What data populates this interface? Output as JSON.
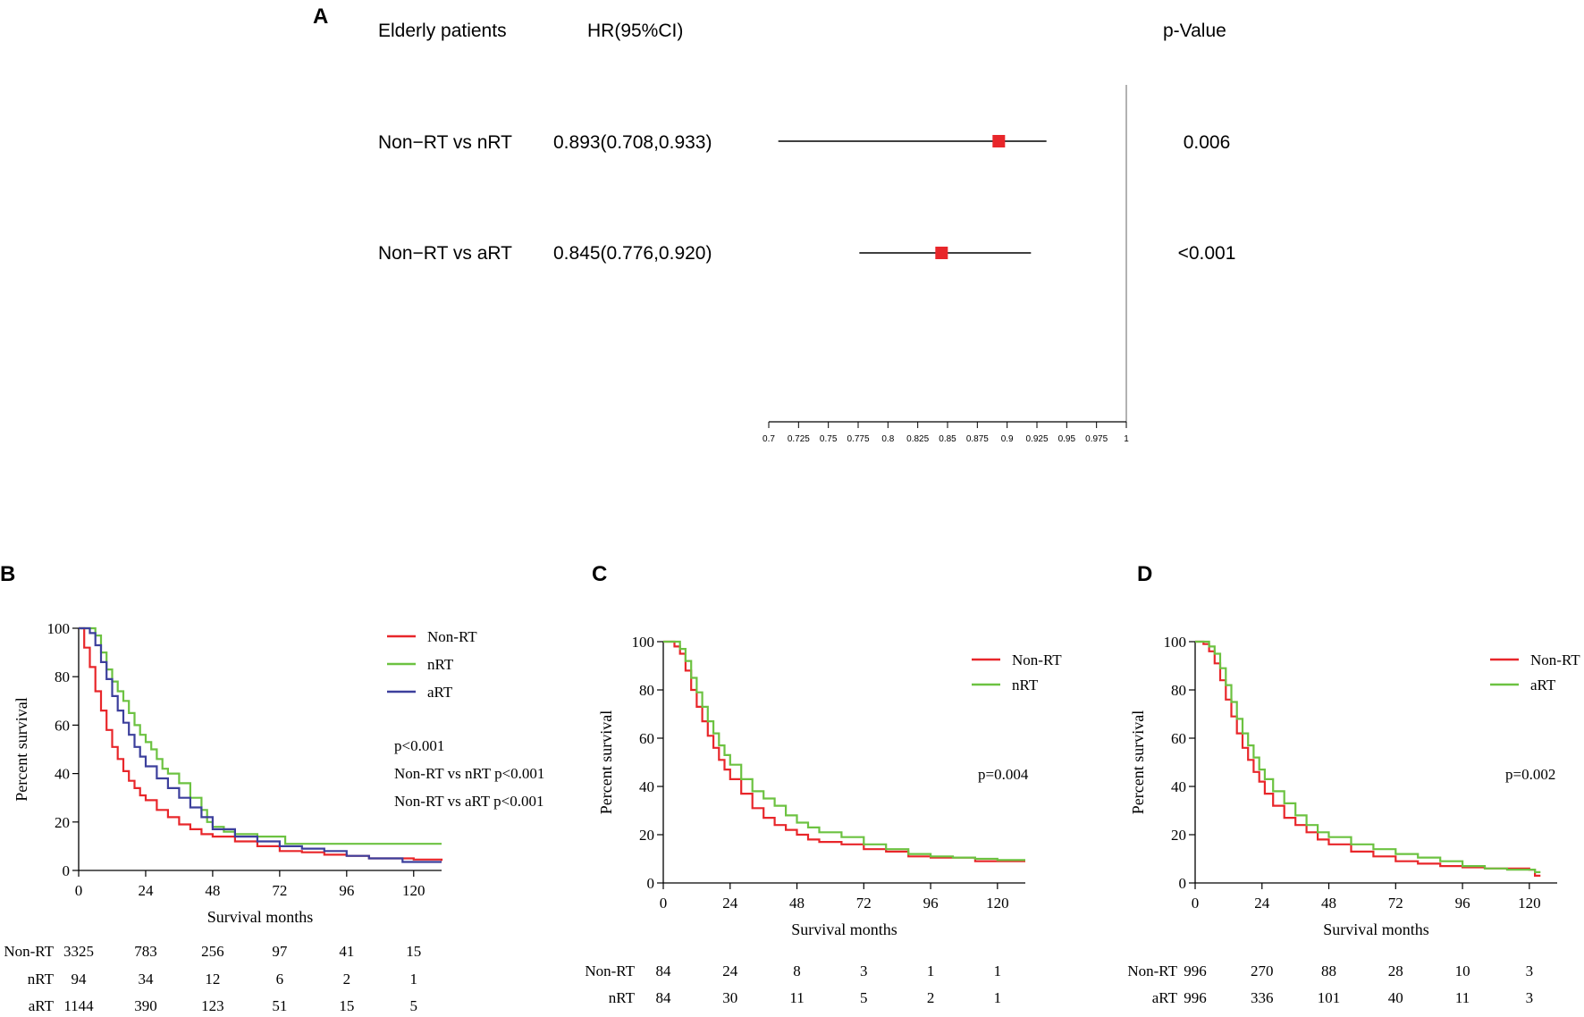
{
  "colors": {
    "red": "#e8262a",
    "green": "#6cc241",
    "blue": "#3c3f9c",
    "black": "#000000",
    "gray": "#999999"
  },
  "chart_data": [
    {
      "panel": "A",
      "type": "forest",
      "header": {
        "group": "Elderly patients",
        "hr": "HR(95%CI)",
        "p": "p-Value"
      },
      "rows": [
        {
          "label": "Non−RT vs nRT",
          "hr_text": "0.893(0.708,0.933)",
          "hr": 0.893,
          "lo": 0.708,
          "hi": 0.933,
          "p": "0.006"
        },
        {
          "label": "Non−RT vs aRT",
          "hr_text": "0.845(0.776,0.920)",
          "hr": 0.845,
          "lo": 0.776,
          "hi": 0.92,
          "p": "<0.001"
        }
      ],
      "xlim": [
        0.7,
        1.0
      ],
      "ref_line": 1.0,
      "ticks": [
        "0.7",
        "0.725",
        "0.75",
        "0.775",
        "0.8",
        "0.825",
        "0.85",
        "0.875",
        "0.9",
        "0.925",
        "0.95",
        "0.975",
        "1"
      ]
    },
    {
      "panel": "B",
      "type": "line",
      "xlabel": "Survival months",
      "ylabel": "Percent survival",
      "xlim": [
        0,
        130
      ],
      "ylim": [
        0,
        100
      ],
      "xticks": [
        "0",
        "24",
        "48",
        "72",
        "96",
        "120"
      ],
      "yticks": [
        "0",
        "20",
        "40",
        "60",
        "80",
        "100"
      ],
      "legend": [
        "Non-RT",
        "nRT",
        "aRT"
      ],
      "annotations": [
        "p<0.001",
        "Non-RT vs nRT p<0.001",
        "Non-RT vs aRT p<0.001"
      ],
      "series": [
        {
          "name": "Non-RT",
          "color": "red",
          "points": [
            [
              0,
              100
            ],
            [
              2,
              92
            ],
            [
              4,
              84
            ],
            [
              6,
              74
            ],
            [
              8,
              66
            ],
            [
              10,
              58
            ],
            [
              12,
              51
            ],
            [
              14,
              46
            ],
            [
              16,
              41
            ],
            [
              18,
              37
            ],
            [
              20,
              34
            ],
            [
              22,
              31
            ],
            [
              24,
              29
            ],
            [
              28,
              25
            ],
            [
              32,
              22
            ],
            [
              36,
              19
            ],
            [
              40,
              17
            ],
            [
              44,
              15
            ],
            [
              48,
              14
            ],
            [
              56,
              12
            ],
            [
              64,
              10
            ],
            [
              72,
              8
            ],
            [
              80,
              7.5
            ],
            [
              88,
              6.5
            ],
            [
              96,
              6
            ],
            [
              104,
              5
            ],
            [
              112,
              5
            ],
            [
              120,
              4.5
            ],
            [
              130,
              4
            ]
          ]
        },
        {
          "name": "nRT",
          "color": "green",
          "points": [
            [
              0,
              100
            ],
            [
              4,
              100
            ],
            [
              6,
              97
            ],
            [
              8,
              90
            ],
            [
              10,
              83
            ],
            [
              12,
              78
            ],
            [
              14,
              74
            ],
            [
              16,
              70
            ],
            [
              18,
              65
            ],
            [
              20,
              60
            ],
            [
              22,
              56
            ],
            [
              24,
              53
            ],
            [
              26,
              50
            ],
            [
              28,
              46
            ],
            [
              30,
              42
            ],
            [
              32,
              40
            ],
            [
              36,
              36
            ],
            [
              40,
              30
            ],
            [
              44,
              25
            ],
            [
              46,
              20
            ],
            [
              48,
              18
            ],
            [
              52,
              16
            ],
            [
              56,
              15
            ],
            [
              64,
              14
            ],
            [
              72,
              14
            ],
            [
              74,
              11
            ],
            [
              130,
              11
            ]
          ]
        },
        {
          "name": "aRT",
          "color": "blue",
          "points": [
            [
              0,
              100
            ],
            [
              4,
              98
            ],
            [
              6,
              93
            ],
            [
              8,
              86
            ],
            [
              10,
              79
            ],
            [
              12,
              72
            ],
            [
              14,
              66
            ],
            [
              16,
              61
            ],
            [
              18,
              56
            ],
            [
              20,
              51
            ],
            [
              22,
              47
            ],
            [
              24,
              43
            ],
            [
              28,
              38
            ],
            [
              32,
              34
            ],
            [
              36,
              30
            ],
            [
              40,
              26
            ],
            [
              44,
              22
            ],
            [
              48,
              17
            ],
            [
              56,
              14
            ],
            [
              64,
              12
            ],
            [
              72,
              10
            ],
            [
              80,
              9
            ],
            [
              88,
              8
            ],
            [
              96,
              6
            ],
            [
              104,
              5
            ],
            [
              112,
              5
            ],
            [
              116,
              3.5
            ],
            [
              130,
              3.5
            ]
          ]
        }
      ],
      "risk_table": {
        "times": [
          "0",
          "24",
          "48",
          "72",
          "96",
          "120"
        ],
        "rows": [
          {
            "label": "Non-RT",
            "values": [
              "3325",
              "783",
              "256",
              "97",
              "41",
              "15"
            ]
          },
          {
            "label": "nRT",
            "values": [
              "94",
              "34",
              "12",
              "6",
              "2",
              "1"
            ]
          },
          {
            "label": "aRT",
            "values": [
              "1144",
              "390",
              "123",
              "51",
              "15",
              "5"
            ]
          }
        ]
      }
    },
    {
      "panel": "C",
      "type": "line",
      "xlabel": "Survival months",
      "ylabel": "Percent survival",
      "xlim": [
        0,
        130
      ],
      "ylim": [
        0,
        100
      ],
      "xticks": [
        "0",
        "24",
        "48",
        "72",
        "96",
        "120"
      ],
      "yticks": [
        "0",
        "20",
        "40",
        "60",
        "80",
        "100"
      ],
      "legend": [
        "Non-RT",
        "nRT"
      ],
      "annotations": [
        "p=0.004"
      ],
      "series": [
        {
          "name": "Non-RT",
          "color": "red",
          "points": [
            [
              0,
              100
            ],
            [
              4,
              98
            ],
            [
              6,
              95
            ],
            [
              8,
              88
            ],
            [
              10,
              80
            ],
            [
              12,
              73
            ],
            [
              14,
              67
            ],
            [
              16,
              61
            ],
            [
              18,
              56
            ],
            [
              20,
              51
            ],
            [
              22,
              47
            ],
            [
              24,
              43
            ],
            [
              28,
              37
            ],
            [
              32,
              31
            ],
            [
              36,
              27
            ],
            [
              40,
              24
            ],
            [
              44,
              22
            ],
            [
              48,
              20
            ],
            [
              52,
              18
            ],
            [
              56,
              17
            ],
            [
              64,
              16
            ],
            [
              72,
              14
            ],
            [
              80,
              13
            ],
            [
              88,
              11
            ],
            [
              96,
              10.5
            ],
            [
              104,
              10.5
            ],
            [
              112,
              9
            ],
            [
              130,
              9
            ]
          ]
        },
        {
          "name": "nRT",
          "color": "green",
          "points": [
            [
              0,
              100
            ],
            [
              4,
              100
            ],
            [
              6,
              97
            ],
            [
              8,
              92
            ],
            [
              10,
              85
            ],
            [
              12,
              79
            ],
            [
              14,
              73
            ],
            [
              16,
              67
            ],
            [
              18,
              62
            ],
            [
              20,
              57
            ],
            [
              22,
              53
            ],
            [
              24,
              49
            ],
            [
              28,
              43
            ],
            [
              32,
              38
            ],
            [
              36,
              35
            ],
            [
              40,
              32
            ],
            [
              44,
              28
            ],
            [
              48,
              25
            ],
            [
              52,
              23
            ],
            [
              56,
              21
            ],
            [
              64,
              19
            ],
            [
              72,
              16
            ],
            [
              80,
              14
            ],
            [
              88,
              12
            ],
            [
              96,
              11
            ],
            [
              104,
              10.5
            ],
            [
              112,
              10
            ],
            [
              120,
              9.5
            ],
            [
              130,
              9.5
            ]
          ]
        }
      ],
      "risk_table": {
        "times": [
          "0",
          "24",
          "48",
          "72",
          "96",
          "120"
        ],
        "rows": [
          {
            "label": "Non-RT",
            "values": [
              "84",
              "24",
              "8",
              "3",
              "1",
              "1"
            ]
          },
          {
            "label": "nRT",
            "values": [
              "84",
              "30",
              "11",
              "5",
              "2",
              "1"
            ]
          }
        ]
      }
    },
    {
      "panel": "D",
      "type": "line",
      "xlabel": "Survival months",
      "ylabel": "Percent survival",
      "xlim": [
        0,
        130
      ],
      "ylim": [
        0,
        100
      ],
      "xticks": [
        "0",
        "24",
        "48",
        "72",
        "96",
        "120"
      ],
      "yticks": [
        "0",
        "20",
        "40",
        "60",
        "80",
        "100"
      ],
      "legend": [
        "Non-RT",
        "aRT"
      ],
      "annotations": [
        "p=0.002"
      ],
      "series": [
        {
          "name": "Non-RT",
          "color": "red",
          "points": [
            [
              0,
              100
            ],
            [
              3,
              99
            ],
            [
              5,
              96
            ],
            [
              7,
              91
            ],
            [
              9,
              84
            ],
            [
              11,
              76
            ],
            [
              13,
              69
            ],
            [
              15,
              62
            ],
            [
              17,
              56
            ],
            [
              19,
              51
            ],
            [
              21,
              46
            ],
            [
              23,
              42
            ],
            [
              25,
              37
            ],
            [
              28,
              32
            ],
            [
              32,
              27
            ],
            [
              36,
              24
            ],
            [
              40,
              21
            ],
            [
              44,
              18
            ],
            [
              48,
              16
            ],
            [
              56,
              13
            ],
            [
              64,
              11
            ],
            [
              72,
              9
            ],
            [
              80,
              8
            ],
            [
              88,
              7
            ],
            [
              96,
              6.5
            ],
            [
              104,
              6
            ],
            [
              112,
              6
            ],
            [
              120,
              5.5
            ],
            [
              122,
              3
            ],
            [
              124,
              3
            ]
          ]
        },
        {
          "name": "aRT",
          "color": "green",
          "points": [
            [
              0,
              100
            ],
            [
              3,
              100
            ],
            [
              5,
              98
            ],
            [
              7,
              95
            ],
            [
              9,
              89
            ],
            [
              11,
              82
            ],
            [
              13,
              75
            ],
            [
              15,
              68
            ],
            [
              17,
              62
            ],
            [
              19,
              57
            ],
            [
              21,
              52
            ],
            [
              23,
              47
            ],
            [
              25,
              43
            ],
            [
              28,
              38
            ],
            [
              32,
              33
            ],
            [
              36,
              28
            ],
            [
              40,
              24
            ],
            [
              44,
              21
            ],
            [
              48,
              19
            ],
            [
              56,
              16
            ],
            [
              64,
              14
            ],
            [
              72,
              12
            ],
            [
              80,
              10.5
            ],
            [
              88,
              9
            ],
            [
              96,
              7
            ],
            [
              104,
              6
            ],
            [
              112,
              5.5
            ],
            [
              120,
              5.5
            ],
            [
              122,
              4.5
            ],
            [
              124,
              4.5
            ]
          ]
        }
      ],
      "risk_table": {
        "times": [
          "0",
          "24",
          "48",
          "72",
          "96",
          "120"
        ],
        "rows": [
          {
            "label": "Non-RT",
            "values": [
              "996",
              "270",
              "88",
              "28",
              "10",
              "3"
            ]
          },
          {
            "label": "aRT",
            "values": [
              "996",
              "336",
              "101",
              "40",
              "11",
              "3"
            ]
          }
        ]
      }
    }
  ]
}
